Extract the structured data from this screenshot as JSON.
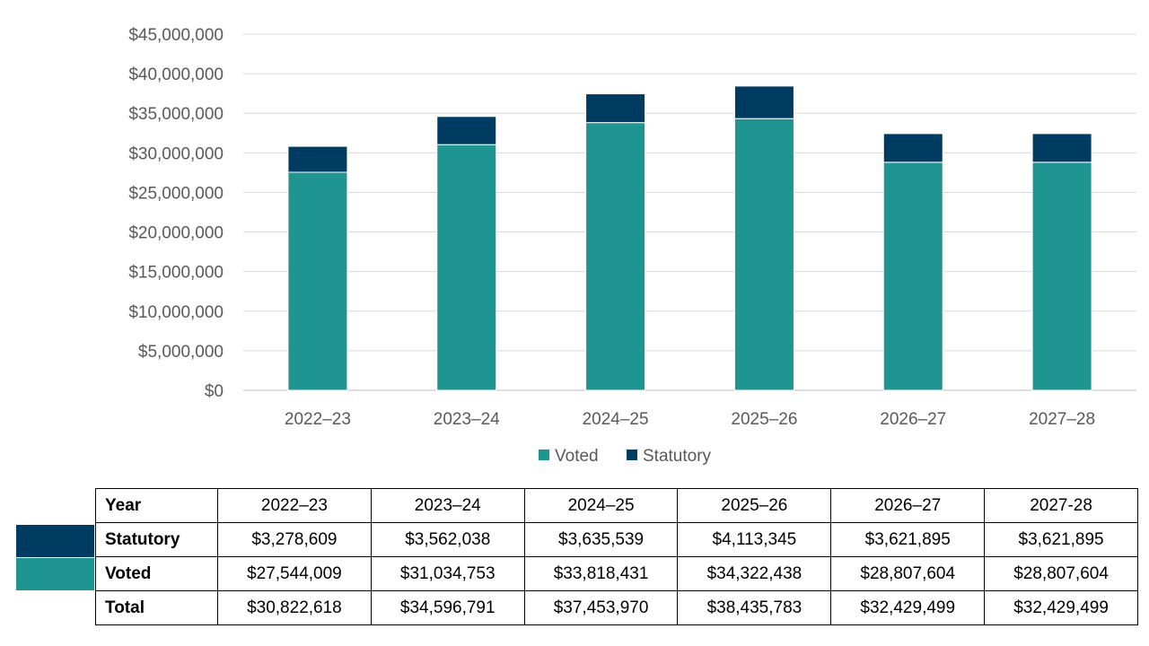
{
  "chart_data": {
    "type": "bar",
    "stacked": true,
    "categories": [
      "2022–23",
      "2023–24",
      "2024–25",
      "2025–26",
      "2026–27",
      "2027–28"
    ],
    "series": [
      {
        "name": "Voted",
        "color": "#1f9591",
        "values": [
          27544009,
          31034753,
          33818431,
          34322438,
          28807604,
          28807604
        ]
      },
      {
        "name": "Statutory",
        "color": "#003b62",
        "values": [
          3278609,
          3562038,
          3635539,
          4113345,
          3621895,
          3621895
        ]
      }
    ],
    "ylim": [
      0,
      45000000
    ],
    "y_ticks": [
      "$0",
      "$5,000,000",
      "$10,000,000",
      "$15,000,000",
      "$20,000,000",
      "$25,000,000",
      "$30,000,000",
      "$35,000,000",
      "$40,000,000",
      "$45,000,000"
    ],
    "y_tick_values": [
      0,
      5000000,
      10000000,
      15000000,
      20000000,
      25000000,
      30000000,
      35000000,
      40000000,
      45000000
    ],
    "grid": true,
    "legend_position": "bottom",
    "title": "",
    "xlabel": "",
    "ylabel": ""
  },
  "table": {
    "header_label": "Year",
    "years": [
      "2022–23",
      "2023–24",
      "2024–25",
      "2025–26",
      "2026–27",
      "2027-28"
    ],
    "rows": [
      {
        "label": "Statutory",
        "swatch_color": "#003b62",
        "values": [
          "$3,278,609",
          "$3,562,038",
          "$3,635,539",
          "$4,113,345",
          "$3,621,895",
          "$3,621,895"
        ]
      },
      {
        "label": "Voted",
        "swatch_color": "#1f9591",
        "values": [
          "$27,544,009",
          "$31,034,753",
          "$33,818,431",
          "$34,322,438",
          "$28,807,604",
          "$28,807,604"
        ]
      },
      {
        "label": "Total",
        "swatch_color": "",
        "values": [
          "$30,822,618",
          "$34,596,791",
          "$37,453,970",
          "$38,435,783",
          "$32,429,499",
          "$32,429,499"
        ]
      }
    ]
  }
}
